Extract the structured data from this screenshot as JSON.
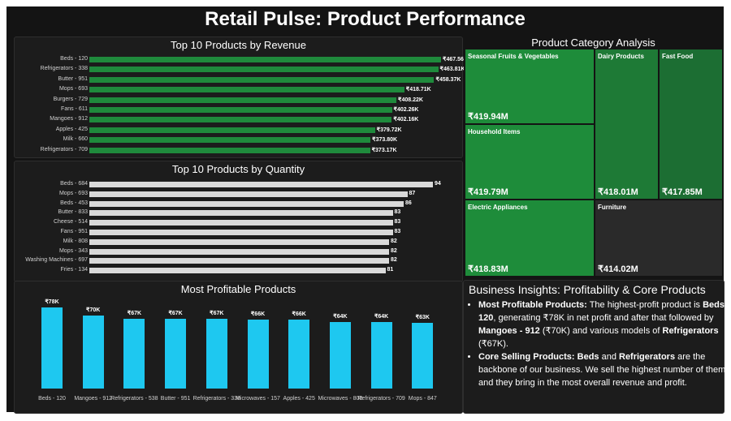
{
  "title": "Retail Pulse: Product Performance",
  "colors": {
    "revenue_bar": "#1f8a3c",
    "quantity_bar": "#d9d9d9",
    "profit_bar": "#1ec8f0"
  },
  "revenue": {
    "title": "Top 10 Products by Revenue",
    "items": [
      {
        "label": "Beds - 120",
        "value": "₹467.56K",
        "amount": 467.56
      },
      {
        "label": "Refrigerators - 338",
        "value": "₹463.81K",
        "amount": 463.81
      },
      {
        "label": "Butter - 951",
        "value": "₹458.37K",
        "amount": 458.37
      },
      {
        "label": "Mops - 693",
        "value": "₹418.71K",
        "amount": 418.71
      },
      {
        "label": "Burgers - 729",
        "value": "₹408.22K",
        "amount": 408.22
      },
      {
        "label": "Fans - 611",
        "value": "₹402.26K",
        "amount": 402.26
      },
      {
        "label": "Mangoes - 912",
        "value": "₹402.16K",
        "amount": 402.16
      },
      {
        "label": "Apples - 425",
        "value": "₹379.72K",
        "amount": 379.72
      },
      {
        "label": "Milk - 660",
        "value": "₹373.80K",
        "amount": 373.8
      },
      {
        "label": "Refrigerators - 709",
        "value": "₹373.17K",
        "amount": 373.17
      }
    ]
  },
  "quantity": {
    "title": "Top 10 Products by Quantity",
    "items": [
      {
        "label": "Beds - 684",
        "value": "94",
        "amount": 94
      },
      {
        "label": "Mops - 693",
        "value": "87",
        "amount": 87
      },
      {
        "label": "Beds - 453",
        "value": "86",
        "amount": 86
      },
      {
        "label": "Butter - 833",
        "value": "83",
        "amount": 83
      },
      {
        "label": "Cheese - 514",
        "value": "83",
        "amount": 83
      },
      {
        "label": "Fans - 951",
        "value": "83",
        "amount": 83
      },
      {
        "label": "Milk - 808",
        "value": "82",
        "amount": 82
      },
      {
        "label": "Mops - 343",
        "value": "82",
        "amount": 82
      },
      {
        "label": "Washing Machines - 697",
        "value": "82",
        "amount": 82
      },
      {
        "label": "Fries - 134",
        "value": "81",
        "amount": 81
      }
    ]
  },
  "profit": {
    "title": "Most Profitable Products",
    "items": [
      {
        "label": "Beds - 120",
        "value": "₹78K",
        "amount": 78
      },
      {
        "label": "Mangoes - 912",
        "value": "₹70K",
        "amount": 70
      },
      {
        "label": "Refrigerators - 538",
        "value": "₹67K",
        "amount": 67
      },
      {
        "label": "Butter - 951",
        "value": "₹67K",
        "amount": 67
      },
      {
        "label": "Refrigerators - 338",
        "value": "₹67K",
        "amount": 67
      },
      {
        "label": "Microwaves - 157",
        "value": "₹66K",
        "amount": 66
      },
      {
        "label": "Apples - 425",
        "value": "₹66K",
        "amount": 66
      },
      {
        "label": "Microwaves - 808",
        "value": "₹64K",
        "amount": 64
      },
      {
        "label": "Refrigerators - 709",
        "value": "₹64K",
        "amount": 64
      },
      {
        "label": "Mops - 847",
        "value": "₹63K",
        "amount": 63
      }
    ]
  },
  "category": {
    "title": "Product Category Analysis",
    "tiles": [
      {
        "name": "Seasonal Fruits & Vegetables",
        "value": "₹419.94M",
        "color": "#1e8c3a"
      },
      {
        "name": "Household Items",
        "value": "₹419.79M",
        "color": "#1e8c3a"
      },
      {
        "name": "Electric Appliances",
        "value": "₹418.83M",
        "color": "#1e8c3a"
      },
      {
        "name": "Dairy Products",
        "value": "₹418.01M",
        "color": "#1e7a36"
      },
      {
        "name": "Fast Food",
        "value": "₹417.85M",
        "color": "#1c6e33"
      },
      {
        "name": "Furniture",
        "value": "₹414.02M",
        "color": "#2a2a2a"
      }
    ]
  },
  "insights": {
    "title": "Business Insights: Profitability & Core Products",
    "b1_head": "Most Profitable Products:",
    "b1_t1": " The highest-profit product is ",
    "b1_b1": "Beds - 120",
    "b1_t2": ", generating ₹78K in net profit and after that followed by ",
    "b1_b2": "Mangoes - 912",
    "b1_t3": " (₹70K) and various models of ",
    "b1_b3": "Refrigerators",
    "b1_t4": " (₹67K).",
    "b2_head": "Core Selling Products: Beds",
    "b2_t1": " and ",
    "b2_b1": "Refrigerators",
    "b2_t2": " are the backbone of our business. We sell the highest number of them, and they bring in the most overall revenue and profit."
  }
}
